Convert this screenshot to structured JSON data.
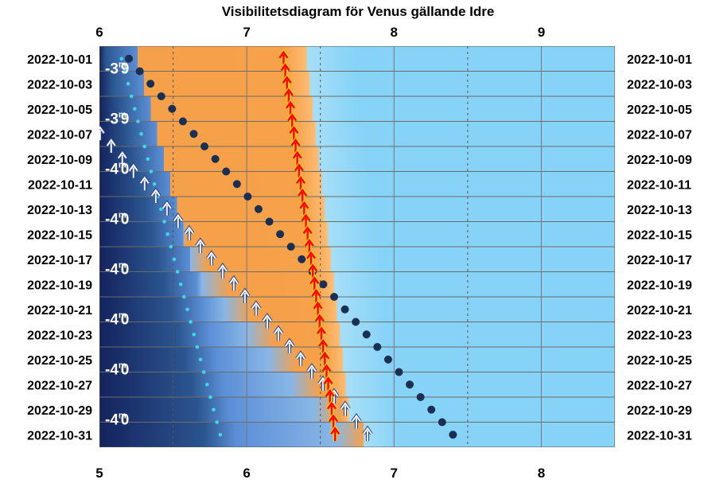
{
  "chart_data": {
    "type": "scatter",
    "title": "Visibilitetsdiagram för Venus gällande Idre",
    "top_axis": {
      "ticks": [
        "6",
        "7",
        "8",
        "9"
      ],
      "range": [
        6,
        9.5
      ]
    },
    "bottom_axis": {
      "ticks": [
        "5",
        "6",
        "7",
        "8"
      ],
      "range": [
        5,
        8.5
      ]
    },
    "dates": [
      "2022-10-01",
      "2022-10-03",
      "2022-10-05",
      "2022-10-07",
      "2022-10-09",
      "2022-10-11",
      "2022-10-13",
      "2022-10-15",
      "2022-10-17",
      "2022-10-19",
      "2022-10-21",
      "2022-10-23",
      "2022-10-25",
      "2022-10-27",
      "2022-10-29",
      "2022-10-31"
    ],
    "magnitudes": [
      {
        "date": "2022-10-01",
        "label": "-3",
        "sup": "m",
        "tail": "9"
      },
      {
        "date": "2022-10-05",
        "label": "-3",
        "sup": "m",
        "tail": "9"
      },
      {
        "date": "2022-10-09",
        "label": "-4",
        "sup": "m",
        "tail": "0"
      },
      {
        "date": "2022-10-13",
        "label": "-4",
        "sup": "m",
        "tail": "0"
      },
      {
        "date": "2022-10-17",
        "label": "-4",
        "sup": "m",
        "tail": "0"
      },
      {
        "date": "2022-10-21",
        "label": "-4",
        "sup": "m",
        "tail": "0"
      },
      {
        "date": "2022-10-25",
        "label": "-4",
        "sup": "m",
        "tail": "0"
      },
      {
        "date": "2022-10-29",
        "label": "-4",
        "sup": "m",
        "tail": "0"
      }
    ],
    "series": [
      {
        "kind": "sunrise",
        "x_start": 7.25,
        "x_end": 7.6,
        "color": "#ff0000"
      },
      {
        "kind": "venus-rise",
        "x_start": 6.2,
        "x_end": 8.4,
        "color": "#1b2f52"
      },
      {
        "kind": "civil-twilight",
        "x_start": 5.55,
        "x_end": 7.82,
        "color": "#ffffff"
      },
      {
        "kind": "nautical-twilight",
        "x_start": 6.15,
        "x_end": 6.82,
        "color": "#3fd6e8"
      },
      {
        "kind": "astro-twilight",
        "x_start": 5.03,
        "x_end": 5.95,
        "color": "#6a80ff"
      }
    ],
    "colors": {
      "night": "#0e1a47",
      "twilight": "#5b8fd6",
      "dawn": "#f7a24a",
      "day": "#87d3f8"
    }
  }
}
